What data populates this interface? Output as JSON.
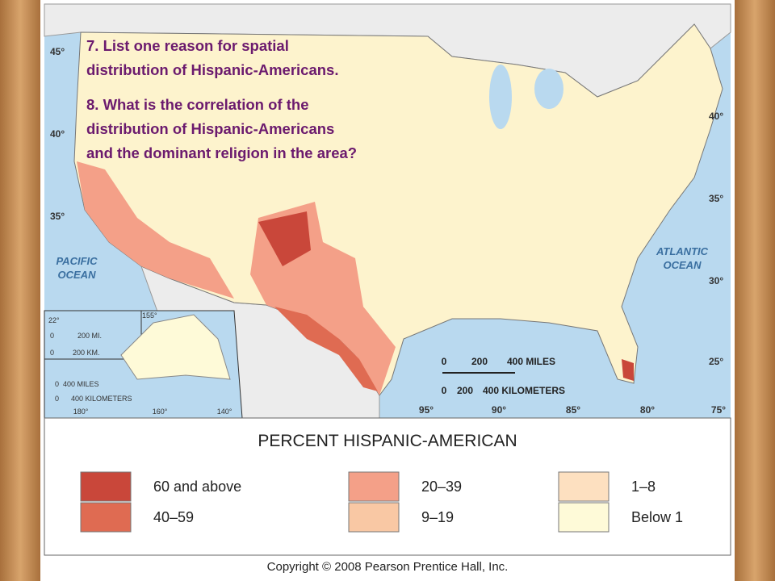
{
  "questions": [
    "7. List one reason for spatial distribution of Hispanic-Americans.",
    "8. What is the correlation of the distribution of Hispanic-Americans and the dominant religion in the area?"
  ],
  "question_lines": [
    [
      "7. List one reason for spatial",
      "distribution of Hispanic-Americans."
    ],
    [
      "8. What is the correlation of the",
      "distribution of Hispanic-Americans",
      "and the dominant religion in the area?"
    ]
  ],
  "map": {
    "latitude_labels_left": [
      "45°",
      "40°",
      "35°"
    ],
    "latitude_labels_right": [
      "40°",
      "35°",
      "30°",
      "25°"
    ],
    "longitude_labels": [
      "95°",
      "90°",
      "85°",
      "80°",
      "75°"
    ],
    "oceans": [
      [
        "PACIFIC",
        "OCEAN"
      ],
      [
        "ATLANTIC",
        "OCEAN"
      ]
    ],
    "scale_miles": [
      "0",
      "200",
      "400 MILES"
    ],
    "scale_kilometers": [
      "0",
      "200",
      "400 KILOMETERS"
    ],
    "hawaii_inset": {
      "labels": [
        "155°",
        "22°"
      ],
      "scale_miles": [
        "0",
        "200 MI."
      ],
      "scale_kilometers": [
        "0",
        "200 KM."
      ]
    },
    "alaska_inset": {
      "longitudes": [
        "180°",
        "160°",
        "140°"
      ],
      "scale_miles": [
        "0",
        "400 MILES"
      ],
      "scale_kilometers": [
        "0",
        "400 KILOMETERS"
      ]
    }
  },
  "legend": {
    "title": "PERCENT HISPANIC-AMERICAN",
    "items": [
      {
        "label": "60 and above",
        "color": "#c9473a"
      },
      {
        "label": "40–59",
        "color": "#df6b52"
      },
      {
        "label": "20–39",
        "color": "#f4a088"
      },
      {
        "label": "9–19",
        "color": "#f9c8a4"
      },
      {
        "label": "1–8",
        "color": "#fde0c0"
      },
      {
        "label": "Below 1",
        "color": "#fefad8"
      }
    ]
  },
  "copyright": "Copyright © 2008 Pearson Prentice Hall, Inc."
}
